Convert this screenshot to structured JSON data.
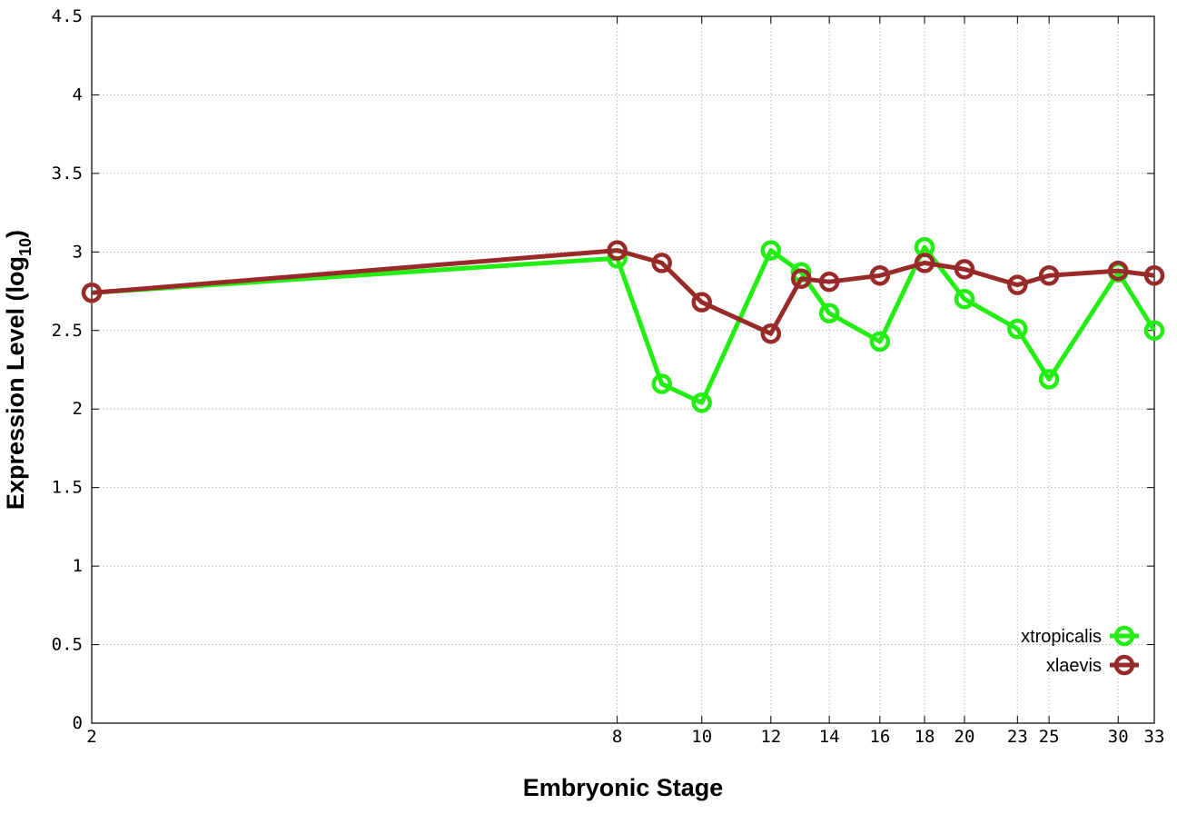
{
  "chart_data": {
    "type": "line",
    "title": "",
    "xlabel": "Embryonic Stage",
    "ylabel_main": "Expression Level (log",
    "ylabel_sub": "10",
    "ylabel_close": ")",
    "x_ticks": [
      2,
      8,
      10,
      12,
      14,
      16,
      18,
      20,
      23,
      25,
      30,
      33
    ],
    "x_tick_labels": [
      "2",
      "8",
      "10",
      "12",
      "14",
      "16",
      "18",
      "20",
      "23",
      "25",
      "30",
      "33"
    ],
    "y_ticks": [
      0,
      0.5,
      1,
      1.5,
      2,
      2.5,
      3,
      3.5,
      4,
      4.5
    ],
    "y_tick_labels": [
      "0",
      "0.5",
      "1",
      "1.5",
      "2",
      "2.5",
      "3",
      "3.5",
      "4",
      "4.5"
    ],
    "ylim": [
      0,
      4.5
    ],
    "x_scale": "log",
    "grid": true,
    "legend_position": "bottom-right",
    "series": [
      {
        "name": "xtropicalis",
        "color": "#22ee11",
        "x": [
          2,
          8,
          9,
          10,
          12,
          13,
          14,
          16,
          18,
          20,
          23,
          25,
          30,
          33
        ],
        "y": [
          2.74,
          2.96,
          2.16,
          2.04,
          3.01,
          2.87,
          2.61,
          2.43,
          3.03,
          2.7,
          2.51,
          2.19,
          2.87,
          2.5
        ]
      },
      {
        "name": "xlaevis",
        "color": "#992a2a",
        "x": [
          2,
          8,
          9,
          10,
          12,
          13,
          14,
          16,
          18,
          20,
          23,
          25,
          30,
          33
        ],
        "y": [
          2.74,
          3.01,
          2.93,
          2.68,
          2.48,
          2.83,
          2.81,
          2.85,
          2.93,
          2.89,
          2.79,
          2.85,
          2.88,
          2.85
        ]
      }
    ]
  }
}
